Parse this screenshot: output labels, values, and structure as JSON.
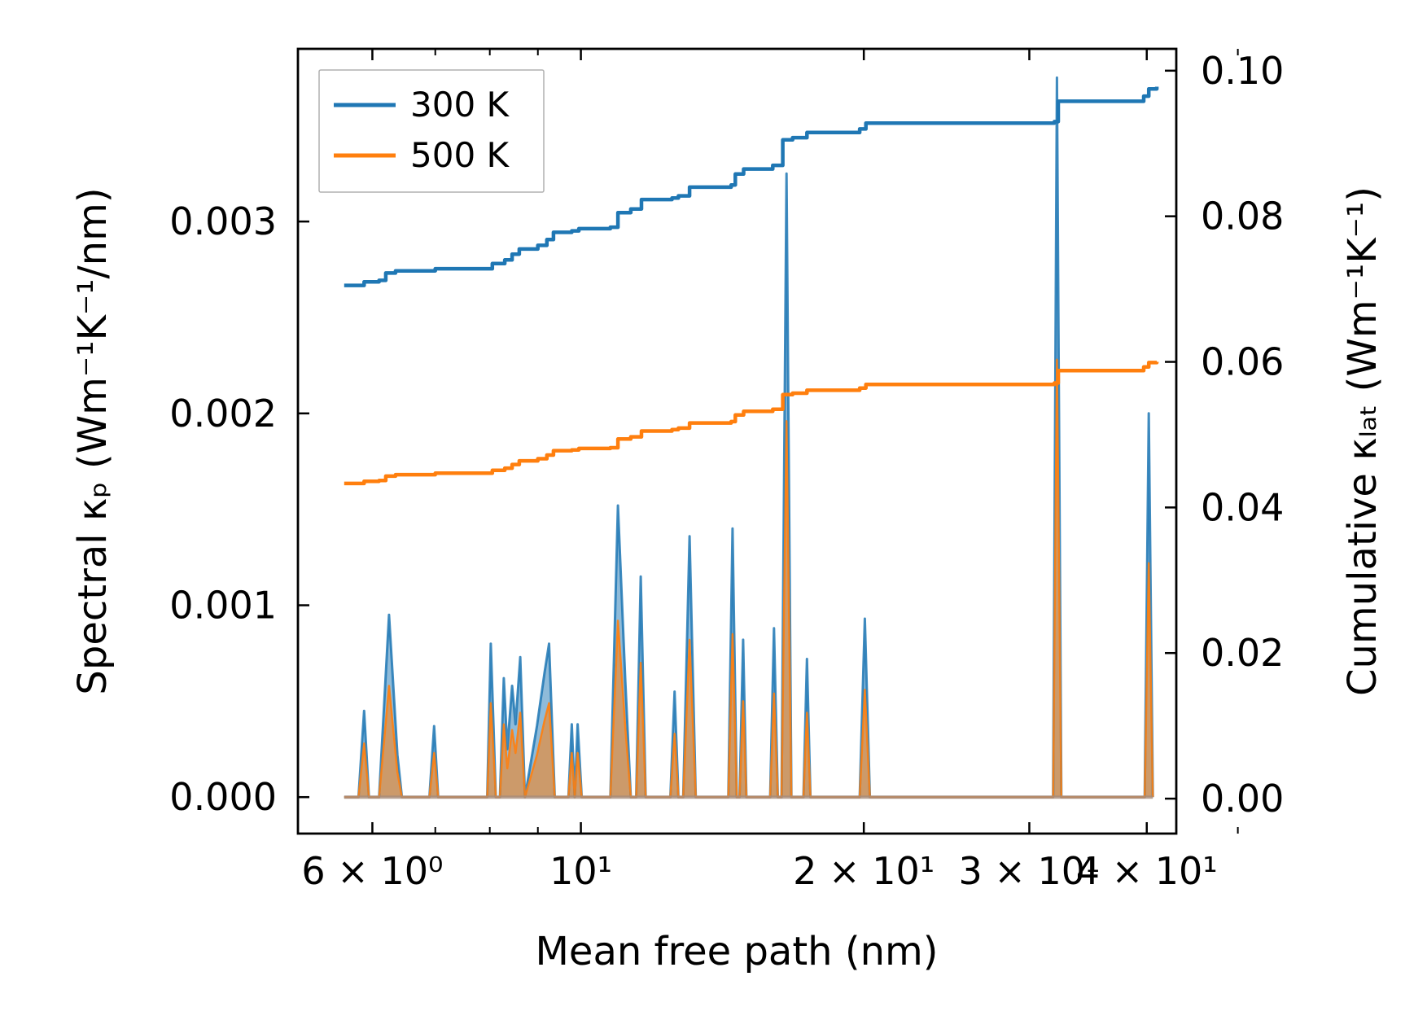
{
  "chart_data": {
    "type": "line",
    "title": "",
    "xlabel": "Mean free path (nm)",
    "ylabel_left": "Spectral κₚ (Wm⁻¹K⁻¹/nm)",
    "ylabel_right": "Cumulative κₗₐₜ (Wm⁻¹K⁻¹)",
    "x_scale": "log",
    "xlim": [
      5.0,
      43.0
    ],
    "ylim_left": [
      -0.00019,
      0.0039
    ],
    "ylim_right": [
      -0.0048,
      0.103
    ],
    "x_ticks": [
      {
        "value": 6,
        "label": "6 × 10⁰"
      },
      {
        "value": 10,
        "label": "10¹"
      },
      {
        "value": 20,
        "label": "2 × 10¹"
      },
      {
        "value": 30,
        "label": "3 × 10¹"
      },
      {
        "value": 40,
        "label": "4 × 10¹"
      }
    ],
    "x_minor_ticks": [
      7,
      8,
      9,
      50
    ],
    "y_left_ticks": [
      {
        "value": 0.0,
        "label": "0.000"
      },
      {
        "value": 0.001,
        "label": "0.001"
      },
      {
        "value": 0.002,
        "label": "0.002"
      },
      {
        "value": 0.003,
        "label": "0.003"
      }
    ],
    "y_right_ticks": [
      {
        "value": 0.0,
        "label": "0.00"
      },
      {
        "value": 0.02,
        "label": "0.02"
      },
      {
        "value": 0.04,
        "label": "0.04"
      },
      {
        "value": 0.06,
        "label": "0.06"
      },
      {
        "value": 0.08,
        "label": "0.08"
      },
      {
        "value": 0.1,
        "label": "0.10"
      }
    ],
    "legend": {
      "position": "top-left",
      "entries": [
        "300 K",
        "500 K"
      ]
    },
    "colors": {
      "300 K": "#1f77b4",
      "500 K": "#ff7f0e",
      "frame": "#000000"
    },
    "spectral_300K": [
      [
        5.6,
        0
      ],
      [
        5.8,
        0
      ],
      [
        5.88,
        0.00045
      ],
      [
        5.95,
        0
      ],
      [
        6.1,
        0
      ],
      [
        6.25,
        0.00095
      ],
      [
        6.38,
        0.00022
      ],
      [
        6.45,
        0
      ],
      [
        6.9,
        0
      ],
      [
        6.98,
        0.00037
      ],
      [
        7.05,
        0
      ],
      [
        7.95,
        0
      ],
      [
        8.02,
        0.0008
      ],
      [
        8.12,
        0
      ],
      [
        8.2,
        0
      ],
      [
        8.28,
        0.00062
      ],
      [
        8.35,
        0.00025
      ],
      [
        8.45,
        0.00058
      ],
      [
        8.52,
        0.00038
      ],
      [
        8.62,
        0.00073
      ],
      [
        8.72,
        0
      ],
      [
        8.98,
        0.00037
      ],
      [
        9.15,
        0.00065
      ],
      [
        9.25,
        0.0008
      ],
      [
        9.38,
        0
      ],
      [
        9.7,
        0
      ],
      [
        9.78,
        0.00038
      ],
      [
        9.85,
        0
      ],
      [
        9.92,
        0.00038
      ],
      [
        10.02,
        0
      ],
      [
        10.75,
        0
      ],
      [
        10.95,
        0.00152
      ],
      [
        11.15,
        0.0006
      ],
      [
        11.3,
        0
      ],
      [
        11.45,
        0
      ],
      [
        11.58,
        0.00115
      ],
      [
        11.72,
        0
      ],
      [
        12.45,
        0
      ],
      [
        12.58,
        0.00055
      ],
      [
        12.7,
        0
      ],
      [
        12.85,
        0
      ],
      [
        13.05,
        0.00136
      ],
      [
        13.25,
        0
      ],
      [
        14.35,
        0
      ],
      [
        14.5,
        0.0014
      ],
      [
        14.65,
        0
      ],
      [
        14.75,
        0
      ],
      [
        14.88,
        0.00082
      ],
      [
        15.0,
        0
      ],
      [
        15.9,
        0
      ],
      [
        16.05,
        0.00088
      ],
      [
        16.2,
        0
      ],
      [
        16.35,
        0
      ],
      [
        16.55,
        0.00325
      ],
      [
        16.75,
        0
      ],
      [
        17.25,
        0
      ],
      [
        17.4,
        0.00072
      ],
      [
        17.55,
        0
      ],
      [
        19.8,
        0
      ],
      [
        20.05,
        0.00093
      ],
      [
        20.3,
        0
      ],
      [
        31.8,
        0
      ],
      [
        32.1,
        0.00375
      ],
      [
        32.45,
        0
      ],
      [
        39.8,
        0
      ],
      [
        40.2,
        0.002
      ],
      [
        40.6,
        0
      ]
    ],
    "spectral_500K": [
      [
        5.6,
        0
      ],
      [
        5.8,
        0
      ],
      [
        5.88,
        0.00028
      ],
      [
        5.95,
        0
      ],
      [
        6.1,
        0
      ],
      [
        6.25,
        0.00058
      ],
      [
        6.38,
        0.00013
      ],
      [
        6.45,
        0
      ],
      [
        6.9,
        0
      ],
      [
        6.98,
        0.00023
      ],
      [
        7.05,
        0
      ],
      [
        7.95,
        0
      ],
      [
        8.02,
        0.00049
      ],
      [
        8.12,
        0
      ],
      [
        8.2,
        0
      ],
      [
        8.28,
        0.00038
      ],
      [
        8.35,
        0.00015
      ],
      [
        8.45,
        0.00035
      ],
      [
        8.52,
        0.00023
      ],
      [
        8.62,
        0.00044
      ],
      [
        8.72,
        0
      ],
      [
        8.98,
        0.00022
      ],
      [
        9.15,
        0.0004
      ],
      [
        9.25,
        0.00049
      ],
      [
        9.38,
        0
      ],
      [
        9.7,
        0
      ],
      [
        9.78,
        0.00023
      ],
      [
        9.85,
        0
      ],
      [
        9.92,
        0.00023
      ],
      [
        10.02,
        0
      ],
      [
        10.75,
        0
      ],
      [
        10.95,
        0.00092
      ],
      [
        11.15,
        0.00036
      ],
      [
        11.3,
        0
      ],
      [
        11.45,
        0
      ],
      [
        11.58,
        0.0007
      ],
      [
        11.72,
        0
      ],
      [
        12.45,
        0
      ],
      [
        12.58,
        0.00033
      ],
      [
        12.7,
        0
      ],
      [
        12.85,
        0
      ],
      [
        13.05,
        0.00082
      ],
      [
        13.25,
        0
      ],
      [
        14.35,
        0
      ],
      [
        14.5,
        0.00085
      ],
      [
        14.65,
        0
      ],
      [
        14.75,
        0
      ],
      [
        14.88,
        0.0005
      ],
      [
        15.0,
        0
      ],
      [
        15.9,
        0
      ],
      [
        16.05,
        0.00054
      ],
      [
        16.2,
        0
      ],
      [
        16.35,
        0
      ],
      [
        16.55,
        0.00196
      ],
      [
        16.75,
        0
      ],
      [
        17.25,
        0
      ],
      [
        17.4,
        0.00044
      ],
      [
        17.55,
        0
      ],
      [
        19.8,
        0
      ],
      [
        20.05,
        0.00056
      ],
      [
        20.3,
        0
      ],
      [
        31.8,
        0
      ],
      [
        32.1,
        0.00228
      ],
      [
        32.45,
        0
      ],
      [
        39.8,
        0
      ],
      [
        40.2,
        0.00122
      ],
      [
        40.6,
        0
      ]
    ],
    "cumulative_300K": [
      [
        5.6,
        0.0705
      ],
      [
        5.8,
        0.0705
      ],
      [
        5.88,
        0.071
      ],
      [
        6.1,
        0.0712
      ],
      [
        6.2,
        0.0722
      ],
      [
        6.35,
        0.0725
      ],
      [
        7.0,
        0.0728
      ],
      [
        7.95,
        0.0728
      ],
      [
        8.05,
        0.0735
      ],
      [
        8.3,
        0.074
      ],
      [
        8.45,
        0.0748
      ],
      [
        8.6,
        0.0755
      ],
      [
        9.0,
        0.076
      ],
      [
        9.2,
        0.0768
      ],
      [
        9.35,
        0.0778
      ],
      [
        9.78,
        0.078
      ],
      [
        9.95,
        0.0783
      ],
      [
        10.75,
        0.0785
      ],
      [
        10.95,
        0.0805
      ],
      [
        11.3,
        0.081
      ],
      [
        11.6,
        0.0823
      ],
      [
        12.5,
        0.0825
      ],
      [
        12.7,
        0.0828
      ],
      [
        13.05,
        0.084
      ],
      [
        14.45,
        0.0843
      ],
      [
        14.6,
        0.0858
      ],
      [
        14.9,
        0.0865
      ],
      [
        16.0,
        0.087
      ],
      [
        16.4,
        0.0905
      ],
      [
        16.8,
        0.0908
      ],
      [
        17.4,
        0.0915
      ],
      [
        19.8,
        0.092
      ],
      [
        20.1,
        0.0928
      ],
      [
        31.9,
        0.093
      ],
      [
        32.2,
        0.0958
      ],
      [
        39.7,
        0.0965
      ],
      [
        40.2,
        0.0975
      ],
      [
        41.0,
        0.0978
      ]
    ],
    "cumulative_500K": [
      [
        5.6,
        0.0433
      ],
      [
        5.8,
        0.0433
      ],
      [
        5.88,
        0.0436
      ],
      [
        6.1,
        0.0437
      ],
      [
        6.2,
        0.0443
      ],
      [
        6.35,
        0.0445
      ],
      [
        7.0,
        0.0447
      ],
      [
        7.95,
        0.0447
      ],
      [
        8.05,
        0.0451
      ],
      [
        8.3,
        0.0454
      ],
      [
        8.45,
        0.0459
      ],
      [
        8.6,
        0.0464
      ],
      [
        9.0,
        0.0467
      ],
      [
        9.2,
        0.0472
      ],
      [
        9.35,
        0.0478
      ],
      [
        9.78,
        0.0479
      ],
      [
        9.95,
        0.0481
      ],
      [
        10.75,
        0.0482
      ],
      [
        10.95,
        0.0494
      ],
      [
        11.3,
        0.0497
      ],
      [
        11.6,
        0.0505
      ],
      [
        12.5,
        0.0507
      ],
      [
        12.7,
        0.0509
      ],
      [
        13.05,
        0.0516
      ],
      [
        14.45,
        0.0518
      ],
      [
        14.6,
        0.0527
      ],
      [
        14.9,
        0.0532
      ],
      [
        16.0,
        0.0535
      ],
      [
        16.4,
        0.0555
      ],
      [
        16.8,
        0.0557
      ],
      [
        17.4,
        0.0561
      ],
      [
        19.8,
        0.0564
      ],
      [
        20.1,
        0.0569
      ],
      [
        31.9,
        0.0571
      ],
      [
        32.2,
        0.0588
      ],
      [
        39.7,
        0.0593
      ],
      [
        40.2,
        0.0599
      ],
      [
        41.0,
        0.06
      ]
    ]
  }
}
